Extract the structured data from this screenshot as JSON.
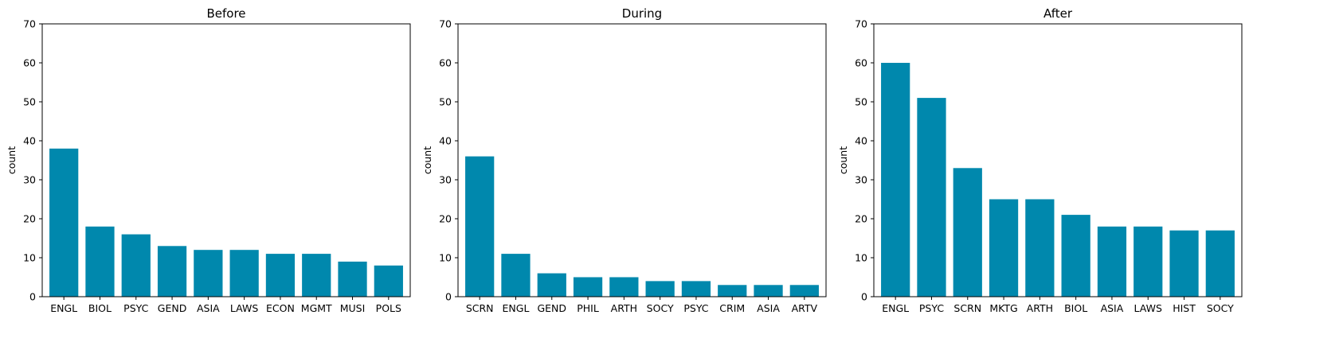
{
  "chart_data": [
    {
      "type": "bar",
      "title": "Before",
      "xlabel": "",
      "ylabel": "count",
      "ylim": [
        0,
        70
      ],
      "yticks": [
        0,
        10,
        20,
        30,
        40,
        50,
        60,
        70
      ],
      "categories": [
        "ENGL",
        "BIOL",
        "PSYC",
        "GEND",
        "ASIA",
        "LAWS",
        "ECON",
        "MGMT",
        "MUSI",
        "POLS"
      ],
      "values": [
        38,
        18,
        16,
        13,
        12,
        12,
        11,
        11,
        9,
        8
      ],
      "bar_color": "#0088ad",
      "grid": false
    },
    {
      "type": "bar",
      "title": "During",
      "xlabel": "",
      "ylabel": "count",
      "ylim": [
        0,
        70
      ],
      "yticks": [
        0,
        10,
        20,
        30,
        40,
        50,
        60,
        70
      ],
      "categories": [
        "SCRN",
        "ENGL",
        "GEND",
        "PHIL",
        "ARTH",
        "SOCY",
        "PSYC",
        "CRIM",
        "ASIA",
        "ARTV"
      ],
      "values": [
        36,
        11,
        6,
        5,
        5,
        4,
        4,
        3,
        3,
        3
      ],
      "bar_color": "#0088ad",
      "grid": false
    },
    {
      "type": "bar",
      "title": "After",
      "xlabel": "",
      "ylabel": "count",
      "ylim": [
        0,
        70
      ],
      "yticks": [
        0,
        10,
        20,
        30,
        40,
        50,
        60,
        70
      ],
      "categories": [
        "ENGL",
        "PSYC",
        "SCRN",
        "MKTG",
        "ARTH",
        "BIOL",
        "ASIA",
        "LAWS",
        "HIST",
        "SOCY"
      ],
      "values": [
        60,
        51,
        33,
        25,
        25,
        21,
        18,
        18,
        17,
        17
      ],
      "bar_color": "#0088ad",
      "grid": false
    }
  ]
}
